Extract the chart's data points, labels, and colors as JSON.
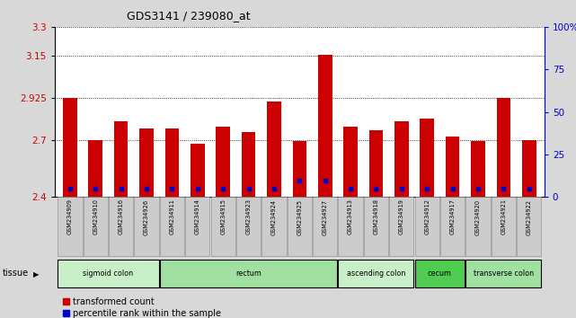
{
  "title": "GDS3141 / 239080_at",
  "samples": [
    "GSM234909",
    "GSM234910",
    "GSM234916",
    "GSM234926",
    "GSM234911",
    "GSM234914",
    "GSM234915",
    "GSM234923",
    "GSM234924",
    "GSM234925",
    "GSM234927",
    "GSM234913",
    "GSM234918",
    "GSM234919",
    "GSM234912",
    "GSM234917",
    "GSM234920",
    "GSM234921",
    "GSM234922"
  ],
  "transformed_counts": [
    2.925,
    2.7,
    2.8,
    2.765,
    2.765,
    2.685,
    2.775,
    2.745,
    2.905,
    2.695,
    3.155,
    2.775,
    2.755,
    2.8,
    2.815,
    2.72,
    2.695,
    2.925,
    2.7
  ],
  "percentile_ranks": [
    5,
    5,
    5,
    5,
    5,
    5,
    5,
    5,
    5,
    10,
    10,
    5,
    5,
    5,
    5,
    5,
    5,
    5,
    5
  ],
  "tissue_groups": [
    {
      "label": "sigmoid colon",
      "start": 0,
      "end": 4,
      "color": "#c8f0c8"
    },
    {
      "label": "rectum",
      "start": 4,
      "end": 11,
      "color": "#a0e0a0"
    },
    {
      "label": "ascending colon",
      "start": 11,
      "end": 14,
      "color": "#c8f0c8"
    },
    {
      "label": "cecum",
      "start": 14,
      "end": 16,
      "color": "#50cc50"
    },
    {
      "label": "transverse colon",
      "start": 16,
      "end": 19,
      "color": "#a0e0a0"
    }
  ],
  "ymin": 2.4,
  "ymax": 3.3,
  "yticks": [
    2.4,
    2.7,
    2.925,
    3.15,
    3.3
  ],
  "ytick_labels": [
    "2.4",
    "2.7",
    "2.925",
    "3.15",
    "3.3"
  ],
  "y2ticks": [
    0,
    25,
    50,
    75,
    100
  ],
  "y2tick_labels": [
    "0",
    "25",
    "50",
    "75",
    "100%"
  ],
  "bar_color": "#cc0000",
  "dot_color": "#0000cc",
  "bg_color": "#d8d8d8",
  "plot_bg": "#ffffff",
  "label_box_color": "#cccccc",
  "xlabel_color": "#cc0000",
  "right_axis_color": "#0000cc"
}
